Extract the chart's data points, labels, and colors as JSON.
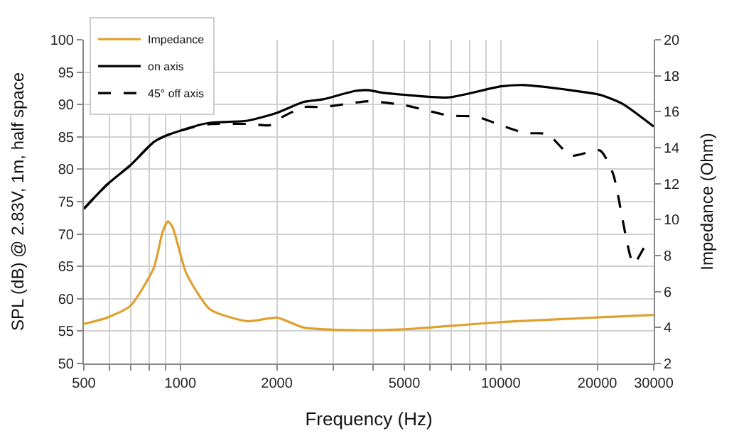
{
  "chart_data": {
    "type": "line",
    "xlabel": "Frequency (Hz)",
    "ylabel": "SPL (dB) @ 2.83V, 1m, half space",
    "y2label": "Impedance (Ohm)",
    "log": "x",
    "xlim": [
      500,
      30000
    ],
    "xticks": [
      500,
      {
        "value": 600,
        "label": null
      },
      {
        "value": 700,
        "label": null
      },
      {
        "value": 800,
        "label": null
      },
      {
        "value": 900,
        "label": null
      },
      1000,
      2000,
      {
        "value": 3000,
        "label": null
      },
      {
        "value": 4000,
        "label": null
      },
      5000,
      {
        "value": 6000,
        "label": null
      },
      {
        "value": 7000,
        "label": null
      },
      {
        "value": 8000,
        "label": null
      },
      {
        "value": 9000,
        "label": null
      },
      10000,
      20000,
      30000
    ],
    "ylim": [
      50,
      100
    ],
    "yticks": [
      50,
      55,
      60,
      65,
      70,
      75,
      80,
      85,
      90,
      95,
      100
    ],
    "y2lim": [
      2,
      20
    ],
    "y2ticks": [
      2,
      4,
      6,
      8,
      10,
      12,
      14,
      16,
      18,
      20
    ],
    "grid": true,
    "legend": "top left",
    "series": [
      {
        "name": "Impedance",
        "color": "#e0a030",
        "axis": "y2",
        "line_style": "solid",
        "x": [
          500,
          590,
          698,
          826,
          880,
          914,
          945,
          1045,
          1240,
          1620,
          2000,
          2427,
          3520,
          5000,
          10000,
          30000
        ],
        "values": [
          4.2,
          4.55,
          5.2,
          7.3,
          9.3,
          9.9,
          9.6,
          7.0,
          5.0,
          4.35,
          4.55,
          4.0,
          3.85,
          3.9,
          4.3,
          4.7
        ]
      },
      {
        "name": "on axis",
        "color": "#000000",
        "line_style": "solid",
        "x": [
          500,
          590,
          698,
          826,
          914,
          1156,
          1250,
          1620,
          2000,
          2427,
          2790,
          3520,
          3890,
          4175,
          5000,
          6900,
          10000,
          11870,
          16550,
          20400,
          24000,
          30000
        ],
        "values": [
          73.9,
          77.6,
          80.6,
          84.2,
          85.3,
          86.9,
          87.2,
          87.5,
          88.7,
          90.4,
          90.8,
          92.1,
          92.2,
          91.9,
          91.5,
          91.1,
          92.8,
          93.0,
          92.2,
          91.5,
          90.1,
          86.6
        ]
      },
      {
        "name": "45° off axis",
        "color": "#000000",
        "line_style": "dashed",
        "x": [
          500,
          590,
          698,
          826,
          914,
          1156,
          1250,
          1620,
          1900,
          2000,
          2427,
          2790,
          3520,
          3890,
          5000,
          6900,
          8400,
          10000,
          11870,
          14000,
          16550,
          20400,
          22400,
          25960,
          28600,
          30000
        ],
        "values": [
          73.9,
          77.6,
          80.6,
          84.2,
          85.3,
          86.8,
          87.0,
          87.0,
          86.8,
          87.6,
          89.6,
          89.6,
          90.3,
          90.5,
          89.9,
          88.3,
          88.1,
          86.8,
          85.6,
          85.4,
          82.1,
          82.9,
          79.3,
          65.4,
          68.5,
          68.2
        ]
      }
    ]
  }
}
